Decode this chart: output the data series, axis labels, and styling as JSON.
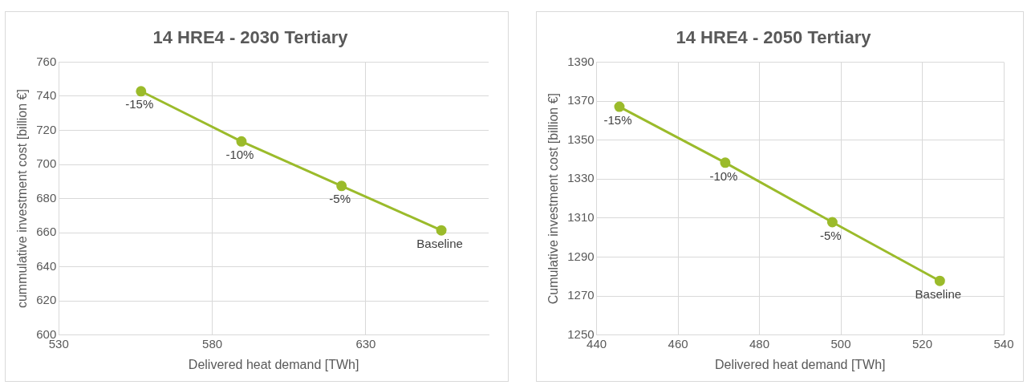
{
  "chart_data": [
    {
      "type": "line",
      "title": "14 HRE4 - 2030 Tertiary",
      "xlabel": "Delivered heat demand [TWh]",
      "ylabel": "cummulative investment cost [billion €]",
      "x": [
        556.8,
        589.5,
        622.1,
        654.6
      ],
      "series": [
        {
          "color": "#9bbb2b",
          "values": [
            742.9,
            713.5,
            687.4,
            661.4
          ]
        }
      ],
      "xlim": [
        530,
        670
      ],
      "xticks": [
        530,
        580,
        630
      ],
      "ylim": [
        600,
        760
      ],
      "yticks": [
        600,
        620,
        640,
        660,
        680,
        700,
        720,
        740,
        760
      ],
      "grid": true,
      "legend": false,
      "marker": "circle",
      "line_style": "solid",
      "annotations": [
        {
          "text": "-15%",
          "x": 556.8,
          "y": 742.9
        },
        {
          "text": "-10%",
          "x": 589.5,
          "y": 713.5
        },
        {
          "text": "-5%",
          "x": 622.1,
          "y": 687.4
        },
        {
          "text": "Baseline",
          "x": 654.6,
          "y": 661.4
        }
      ]
    },
    {
      "type": "line",
      "title": "14 HRE4 - 2050 Tertiary",
      "xlabel": "Delivered heat demand [TWh]",
      "ylabel": "Cumulative investment cost [billion €]",
      "x": [
        445.6,
        471.6,
        497.9,
        524.3
      ],
      "series": [
        {
          "color": "#9bbb2b",
          "values": [
            1367.1,
            1338.4,
            1307.9,
            1277.8
          ]
        }
      ],
      "xlim": [
        440,
        540
      ],
      "xticks": [
        440,
        460,
        480,
        500,
        520,
        540
      ],
      "ylim": [
        1250,
        1390
      ],
      "yticks": [
        1250,
        1270,
        1290,
        1310,
        1330,
        1350,
        1370,
        1390
      ],
      "grid": true,
      "legend": false,
      "marker": "circle",
      "line_style": "solid",
      "annotations": [
        {
          "text": "-15%",
          "x": 445.6,
          "y": 1367.1
        },
        {
          "text": "-10%",
          "x": 471.6,
          "y": 1338.4
        },
        {
          "text": "-5%",
          "x": 497.9,
          "y": 1307.9
        },
        {
          "text": "Baseline",
          "x": 524.3,
          "y": 1277.8
        }
      ]
    }
  ]
}
